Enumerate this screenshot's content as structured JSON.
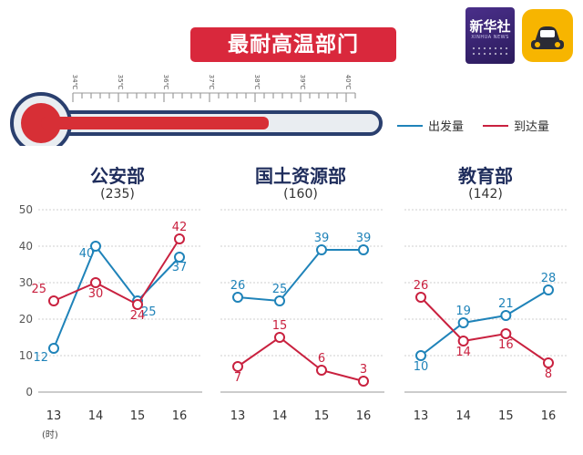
{
  "header": {
    "title": "最耐高温部门"
  },
  "logos": {
    "xinhua_text": "新华社",
    "xinhua_sub": "XINHUA NEWS"
  },
  "thermometer": {
    "ticks": [
      "34℃",
      "35℃",
      "36℃",
      "37℃",
      "38℃",
      "39℃",
      "40℃"
    ]
  },
  "legend": [
    {
      "label": "出发量",
      "color": "#1f83b9"
    },
    {
      "label": "到达量",
      "color": "#c9213f"
    }
  ],
  "colors": {
    "departure": "#1f83b9",
    "arrival": "#c9213f",
    "title_bg": "#d9283c",
    "panel_title": "#1f2d5c"
  },
  "chart_data": [
    {
      "type": "line",
      "title": "公安部",
      "subtitle": "(235)",
      "x": [
        13,
        14,
        15,
        16
      ],
      "xlabel": "(时)",
      "ylim": [
        0,
        50
      ],
      "yticks": [
        0,
        10,
        20,
        30,
        40,
        50
      ],
      "series": [
        {
          "name": "出发量",
          "values": [
            12,
            40,
            25,
            37
          ]
        },
        {
          "name": "到达量",
          "values": [
            25,
            30,
            24,
            42
          ]
        }
      ]
    },
    {
      "type": "line",
      "title": "国土资源部",
      "subtitle": "(160)",
      "x": [
        13,
        14,
        15,
        16
      ],
      "ylim": [
        0,
        50
      ],
      "series": [
        {
          "name": "出发量",
          "values": [
            26,
            25,
            39,
            39
          ]
        },
        {
          "name": "到达量",
          "values": [
            7,
            15,
            6,
            3
          ]
        }
      ]
    },
    {
      "type": "line",
      "title": "教育部",
      "subtitle": "(142)",
      "x": [
        13,
        14,
        15,
        16
      ],
      "ylim": [
        0,
        50
      ],
      "series": [
        {
          "name": "出发量",
          "values": [
            10,
            19,
            21,
            28
          ]
        },
        {
          "name": "到达量",
          "values": [
            26,
            14,
            16,
            8
          ]
        }
      ]
    }
  ]
}
